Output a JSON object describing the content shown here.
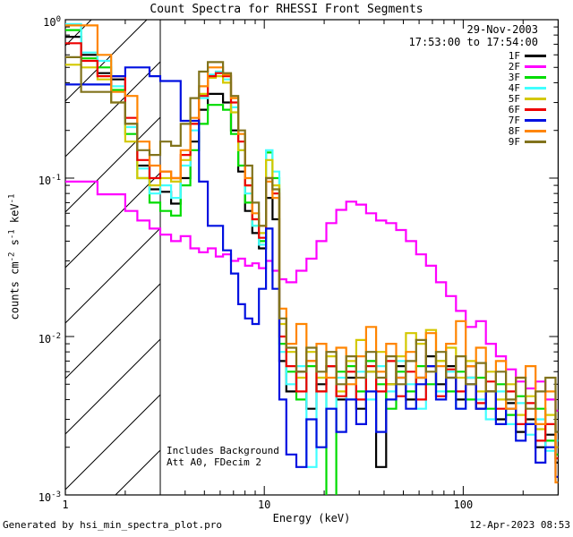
{
  "title": "Count Spectra for RHESSI Front Segments",
  "header": {
    "date_line1": "29-Nov-2003",
    "date_line2": "17:53:00 to 17:54:00"
  },
  "annotations": {
    "line1": "Includes Background",
    "line2": "Att A0, FDecim 2"
  },
  "footer": {
    "left": "Generated by hsi_min_spectra_plot.pro",
    "right": "12-Apr-2023 08:53"
  },
  "chart_data": {
    "type": "line",
    "mode": "log-log step histogram",
    "title": "Count Spectra for RHESSI Front Segments",
    "xlabel": "Energy (keV)",
    "ylabel": "counts cm-2 s-1 keV-1",
    "ylabel_parts": [
      {
        "text": "counts cm",
        "sup": "-2"
      },
      {
        "text": " s",
        "sup": "-1"
      },
      {
        "text": " keV",
        "sup": "-1"
      }
    ],
    "xlim": [
      1,
      300
    ],
    "ylim": [
      0.001,
      1
    ],
    "x_ticks": [
      1,
      10,
      100
    ],
    "x_tick_labels": [
      "1",
      "10",
      "100"
    ],
    "y_tick_exponents": [
      0,
      -1,
      -2,
      -3
    ],
    "grid": false,
    "legend_position": "top-right",
    "hatched_region": {
      "x_start": 1,
      "x_end": 3
    },
    "energies_keV": [
      1.0,
      1.2,
      1.45,
      1.7,
      2.0,
      2.3,
      2.65,
      3.0,
      3.4,
      3.8,
      4.25,
      4.7,
      5.2,
      5.7,
      6.2,
      6.8,
      7.4,
      8.0,
      8.7,
      9.4,
      10.2,
      11.0,
      11.9,
      12.9,
      14.5,
      16.3,
      18.3,
      20.5,
      23,
      25.8,
      29,
      32.5,
      36.5,
      41,
      46,
      51.5,
      58,
      65,
      73,
      82,
      92,
      103,
      116,
      130,
      146,
      164,
      184,
      206,
      231,
      259,
      291,
      300
    ],
    "series": [
      {
        "name": "1F",
        "color": "#000000",
        "values": [
          0.78,
          0.6,
          0.46,
          0.42,
          0.22,
          0.12,
          0.085,
          0.082,
          0.069,
          0.1,
          0.17,
          0.27,
          0.34,
          0.34,
          0.3,
          0.2,
          0.11,
          0.062,
          0.045,
          0.036,
          0.075,
          0.055,
          0.007,
          0.0045,
          0.006,
          0.0035,
          0.005,
          0.0065,
          0.004,
          0.0055,
          0.0035,
          0.006,
          0.0015,
          0.005,
          0.0065,
          0.004,
          0.0055,
          0.0075,
          0.005,
          0.0065,
          0.004,
          0.0055,
          0.0035,
          0.0045,
          0.003,
          0.0038,
          0.0025,
          0.003,
          0.002,
          0.0024,
          0.0016,
          0.0016
        ]
      },
      {
        "name": "2F",
        "color": "#ff00ff",
        "values": [
          0.095,
          0.095,
          0.079,
          0.079,
          0.062,
          0.054,
          0.048,
          0.044,
          0.04,
          0.043,
          0.036,
          0.034,
          0.036,
          0.032,
          0.033,
          0.03,
          0.031,
          0.028,
          0.029,
          0.027,
          0.03,
          0.026,
          0.023,
          0.022,
          0.026,
          0.031,
          0.04,
          0.052,
          0.063,
          0.071,
          0.068,
          0.06,
          0.054,
          0.052,
          0.047,
          0.04,
          0.033,
          0.028,
          0.022,
          0.018,
          0.0145,
          0.0115,
          0.0125,
          0.009,
          0.0075,
          0.0062,
          0.0052,
          0.0047,
          0.0052,
          0.004,
          0.0034,
          0.0034
        ]
      },
      {
        "name": "3F",
        "color": "#00dc00",
        "values": [
          0.86,
          0.57,
          0.5,
          0.36,
          0.19,
          0.1,
          0.07,
          0.062,
          0.058,
          0.09,
          0.15,
          0.22,
          0.29,
          0.29,
          0.27,
          0.19,
          0.12,
          0.07,
          0.05,
          0.04,
          0.145,
          0.1,
          0.009,
          0.006,
          0.004,
          0.0065,
          0.0045,
          0.0005,
          0.006,
          0.0065,
          0.0045,
          0.007,
          0.005,
          0.0035,
          0.006,
          0.0045,
          0.0065,
          0.005,
          0.007,
          0.0045,
          0.006,
          0.004,
          0.0055,
          0.0035,
          0.005,
          0.0032,
          0.0042,
          0.0028,
          0.0035,
          0.0022,
          0.0018,
          0.0018
        ]
      },
      {
        "name": "4F",
        "color": "#40ffff",
        "values": [
          0.94,
          0.62,
          0.55,
          0.38,
          0.21,
          0.115,
          0.08,
          0.09,
          0.075,
          0.12,
          0.2,
          0.32,
          0.45,
          0.47,
          0.42,
          0.28,
          0.15,
          0.08,
          0.05,
          0.038,
          0.15,
          0.11,
          0.008,
          0.005,
          0.0065,
          0.0015,
          0.0055,
          0.0035,
          0.0055,
          0.004,
          0.006,
          0.004,
          0.0065,
          0.0045,
          0.007,
          0.005,
          0.0035,
          0.0065,
          0.0045,
          0.006,
          0.0035,
          0.0055,
          0.004,
          0.003,
          0.0045,
          0.0028,
          0.0038,
          0.0024,
          0.003,
          0.0019,
          0.0022,
          0.0022
        ]
      },
      {
        "name": "5F",
        "color": "#d3c800",
        "values": [
          0.52,
          0.5,
          0.42,
          0.3,
          0.17,
          0.1,
          0.09,
          0.1,
          0.095,
          0.13,
          0.22,
          0.34,
          0.43,
          0.44,
          0.4,
          0.26,
          0.15,
          0.09,
          0.055,
          0.045,
          0.13,
          0.09,
          0.012,
          0.008,
          0.0055,
          0.008,
          0.0055,
          0.0075,
          0.0045,
          0.007,
          0.0095,
          0.006,
          0.008,
          0.005,
          0.0075,
          0.0105,
          0.009,
          0.011,
          0.007,
          0.0085,
          0.0055,
          0.007,
          0.0045,
          0.006,
          0.004,
          0.005,
          0.0032,
          0.0042,
          0.0026,
          0.0032,
          0.002,
          0.002
        ]
      },
      {
        "name": "6F",
        "color": "#ee0000",
        "values": [
          0.71,
          0.55,
          0.44,
          0.44,
          0.24,
          0.13,
          0.1,
          0.11,
          0.1,
          0.14,
          0.22,
          0.33,
          0.44,
          0.46,
          0.44,
          0.3,
          0.17,
          0.09,
          0.055,
          0.042,
          0.1,
          0.08,
          0.01,
          0.0065,
          0.0045,
          0.007,
          0.0045,
          0.0065,
          0.0042,
          0.006,
          0.004,
          0.0065,
          0.0045,
          0.007,
          0.0042,
          0.006,
          0.004,
          0.0065,
          0.0042,
          0.0062,
          0.0045,
          0.0065,
          0.0038,
          0.0052,
          0.0035,
          0.0045,
          0.0028,
          0.0038,
          0.0022,
          0.0028,
          0.0017,
          0.0017
        ]
      },
      {
        "name": "7F",
        "color": "#0010e0",
        "values": [
          0.39,
          0.39,
          0.39,
          0.44,
          0.5,
          0.5,
          0.44,
          0.41,
          0.41,
          0.23,
          0.23,
          0.095,
          0.05,
          0.05,
          0.035,
          0.025,
          0.016,
          0.013,
          0.012,
          0.02,
          0.048,
          0.02,
          0.004,
          0.0018,
          0.0015,
          0.003,
          0.002,
          0.0035,
          0.0025,
          0.004,
          0.0028,
          0.0045,
          0.0025,
          0.004,
          0.0055,
          0.0035,
          0.005,
          0.0065,
          0.004,
          0.0055,
          0.0035,
          0.005,
          0.0035,
          0.0045,
          0.0028,
          0.0035,
          0.0022,
          0.0028,
          0.0016,
          0.002,
          0.0013,
          0.0013
        ]
      },
      {
        "name": "8F",
        "color": "#ff8500",
        "values": [
          0.92,
          0.92,
          0.6,
          0.35,
          0.33,
          0.17,
          0.12,
          0.11,
          0.1,
          0.15,
          0.24,
          0.38,
          0.5,
          0.5,
          0.45,
          0.32,
          0.19,
          0.1,
          0.06,
          0.05,
          0.095,
          0.075,
          0.015,
          0.009,
          0.012,
          0.007,
          0.009,
          0.0055,
          0.0085,
          0.005,
          0.0075,
          0.0115,
          0.006,
          0.009,
          0.0055,
          0.008,
          0.0055,
          0.0105,
          0.0065,
          0.009,
          0.0125,
          0.0065,
          0.0085,
          0.0045,
          0.007,
          0.0035,
          0.0055,
          0.0065,
          0.0028,
          0.0045,
          0.0012,
          0.0012
        ]
      },
      {
        "name": "9F",
        "color": "#81731c",
        "values": [
          0.58,
          0.35,
          0.35,
          0.3,
          0.22,
          0.15,
          0.14,
          0.17,
          0.16,
          0.22,
          0.32,
          0.47,
          0.54,
          0.54,
          0.46,
          0.33,
          0.2,
          0.12,
          0.07,
          0.05,
          0.1,
          0.085,
          0.013,
          0.0085,
          0.006,
          0.0085,
          0.006,
          0.008,
          0.005,
          0.0075,
          0.0055,
          0.008,
          0.0055,
          0.0075,
          0.005,
          0.007,
          0.0095,
          0.006,
          0.008,
          0.0055,
          0.0075,
          0.005,
          0.0068,
          0.0045,
          0.006,
          0.004,
          0.0055,
          0.0035,
          0.0045,
          0.0055,
          0.0025,
          0.0025
        ]
      }
    ]
  }
}
